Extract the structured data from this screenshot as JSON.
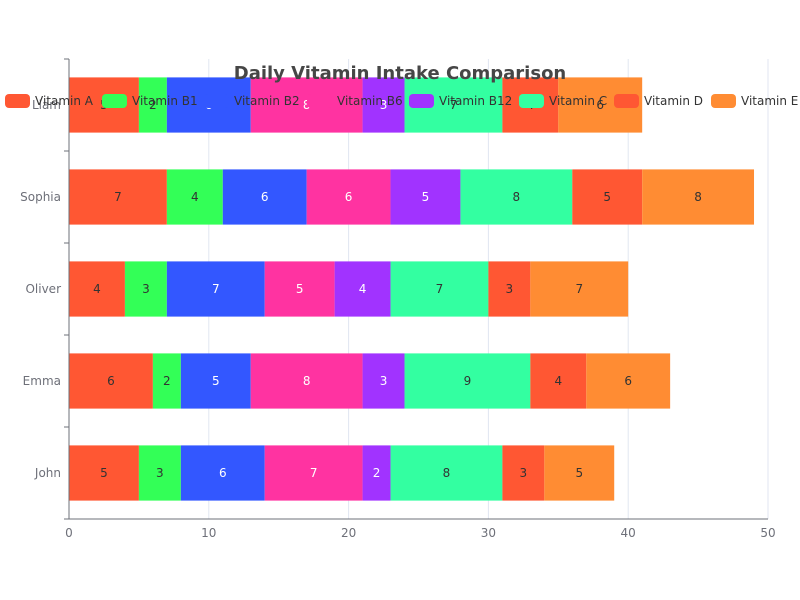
{
  "chart_data": {
    "type": "bar",
    "orientation": "horizontal",
    "stacked": true,
    "title": "Daily Vitamin Intake Comparison",
    "categories": [
      "John",
      "Emma",
      "Oliver",
      "Sophia",
      "Liam"
    ],
    "xlim": [
      0,
      50
    ],
    "xticks": [
      0,
      10,
      20,
      30,
      40,
      50
    ],
    "grid": true,
    "legend_position": "top",
    "series": [
      {
        "name": "Vitamin A",
        "color": "#ff5733",
        "values": [
          5,
          6,
          4,
          7,
          5
        ]
      },
      {
        "name": "Vitamin B1",
        "color": "#33ff57",
        "values": [
          3,
          2,
          3,
          4,
          2
        ]
      },
      {
        "name": "Vitamin B2",
        "color": "#3357ff",
        "values": [
          6,
          5,
          7,
          6,
          6
        ]
      },
      {
        "name": "Vitamin B6",
        "color": "#ff33a1",
        "values": [
          7,
          8,
          5,
          6,
          8
        ]
      },
      {
        "name": "Vitamin B12",
        "color": "#a133ff",
        "values": [
          2,
          3,
          4,
          5,
          3
        ]
      },
      {
        "name": "Vitamin C",
        "color": "#33ffa1",
        "values": [
          8,
          9,
          7,
          8,
          7
        ]
      },
      {
        "name": "Vitamin D",
        "color": "#ff5733",
        "values": [
          3,
          4,
          3,
          5,
          4
        ]
      },
      {
        "name": "Vitamin E",
        "color": "#ff8c33",
        "values": [
          5,
          6,
          7,
          8,
          6
        ]
      }
    ]
  }
}
